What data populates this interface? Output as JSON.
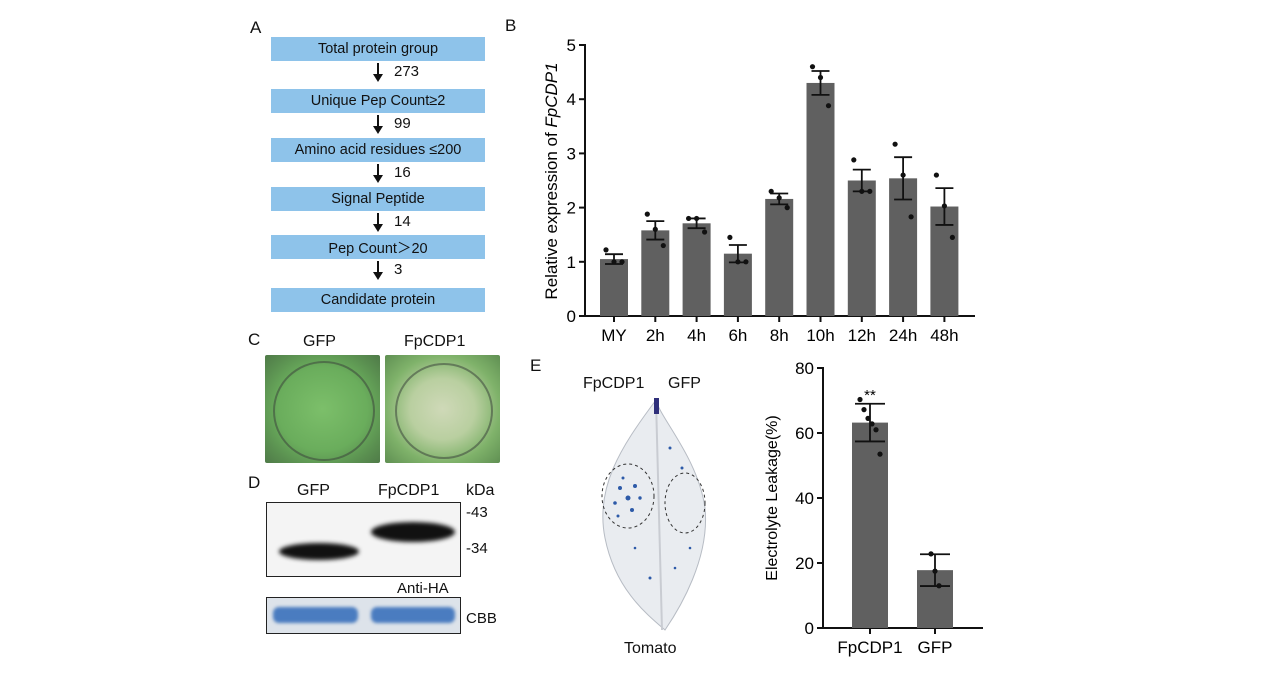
{
  "panels": {
    "A": "A",
    "B": "B",
    "C": "C",
    "D": "D",
    "E": "E"
  },
  "flow": {
    "steps": [
      "Total protein group",
      "Unique Pep Count≥2",
      "Amino acid residues ≤200",
      "Signal Peptide",
      "Pep Count＞20",
      "Candidate protein"
    ],
    "counts": [
      "273",
      "99",
      "16",
      "14",
      "3"
    ]
  },
  "panel_c": {
    "labels": [
      "GFP",
      "FpCDP1"
    ]
  },
  "panel_d": {
    "lanes": [
      "GFP",
      "FpCDP1"
    ],
    "unit": "kDa",
    "markers": [
      "-43",
      "-34"
    ],
    "antibody": "Anti-HA",
    "stain": "CBB"
  },
  "panel_e": {
    "leaf_labels": [
      "FpCDP1",
      "GFP"
    ],
    "leaf_caption": "Tomato"
  },
  "colors": {
    "bar": "#606060",
    "flow_box": "#8ec3ea"
  },
  "chart_data": [
    {
      "type": "bar",
      "ylabel_prefix": "Relative expression of ",
      "ylabel_gene": "FpCDP1",
      "categories": [
        "MY",
        "2h",
        "4h",
        "6h",
        "8h",
        "10h",
        "12h",
        "24h",
        "48h"
      ],
      "values": [
        1.05,
        1.58,
        1.71,
        1.15,
        2.16,
        4.3,
        2.5,
        2.54,
        2.02
      ],
      "errors": [
        0.09,
        0.17,
        0.09,
        0.16,
        0.1,
        0.22,
        0.2,
        0.39,
        0.34
      ],
      "points": [
        [
          1.22,
          1.0,
          1.0
        ],
        [
          1.88,
          1.6,
          1.3
        ],
        [
          1.8,
          1.8,
          1.55
        ],
        [
          1.45,
          1.0,
          1.0
        ],
        [
          2.3,
          2.18,
          2.0
        ],
        [
          4.6,
          4.4,
          3.88
        ],
        [
          2.88,
          2.3,
          2.3
        ],
        [
          3.17,
          2.6,
          1.83
        ],
        [
          2.6,
          2.03,
          1.45
        ]
      ],
      "yticks": [
        "0",
        "1",
        "2",
        "3",
        "4",
        "5"
      ],
      "ylim": [
        0,
        5
      ]
    },
    {
      "type": "bar",
      "ylabel": "Electrolyte Leakage(%)",
      "categories": [
        "FpCDP1",
        "GFP"
      ],
      "values": [
        63.2,
        17.8
      ],
      "errors": [
        5.8,
        4.9
      ],
      "points": [
        [
          70.3,
          67.2,
          64.5,
          62.8,
          61.0,
          53.5
        ],
        [
          22.8,
          17.5,
          13.0
        ]
      ],
      "annotation": "**",
      "yticks": [
        "0",
        "20",
        "40",
        "60",
        "80"
      ],
      "ylim": [
        0,
        80
      ]
    }
  ]
}
